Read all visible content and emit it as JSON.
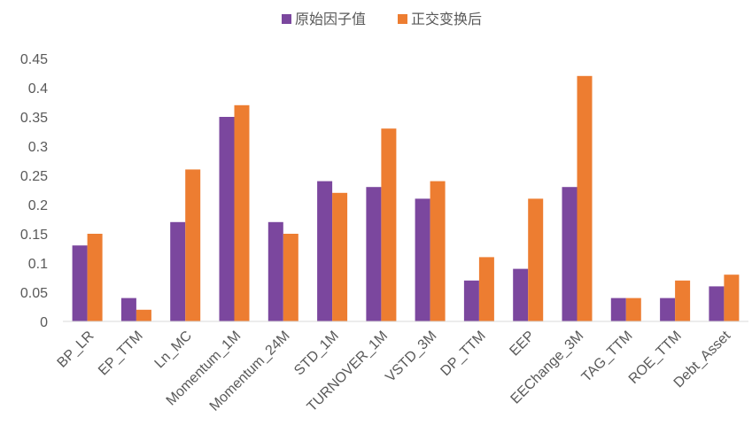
{
  "colors": {
    "series_1": "#7B479E",
    "series_2": "#ED7D31",
    "axis": "#D9D9D9",
    "text": "#595959"
  },
  "chart_data": {
    "type": "bar",
    "title": "",
    "xlabel": "",
    "ylabel": "",
    "legend_position": "top",
    "grid": false,
    "ylim": [
      0,
      0.45
    ],
    "yticks": [
      "0",
      "0.05",
      "0.1",
      "0.15",
      "0.2",
      "0.25",
      "0.3",
      "0.35",
      "0.4",
      "0.45"
    ],
    "categories": [
      "BP_LR",
      "EP_TTM",
      "Ln_MC",
      "Momentum_1M",
      "Momentum_24M",
      "STD_1M",
      "TURNOVER_1M",
      "VSTD_3M",
      "DP_TTM",
      "EEP",
      "EEChange_3M",
      "TAG_TTM",
      "ROE_TTM",
      "Debt_Asset"
    ],
    "series": [
      {
        "name": "原始因子值",
        "values": [
          0.13,
          0.04,
          0.17,
          0.35,
          0.17,
          0.24,
          0.23,
          0.21,
          0.07,
          0.09,
          0.23,
          0.04,
          0.04,
          0.06
        ]
      },
      {
        "name": "正交变换后",
        "values": [
          0.15,
          0.02,
          0.26,
          0.37,
          0.15,
          0.22,
          0.33,
          0.24,
          0.11,
          0.21,
          0.42,
          0.04,
          0.07,
          0.08
        ]
      }
    ]
  }
}
